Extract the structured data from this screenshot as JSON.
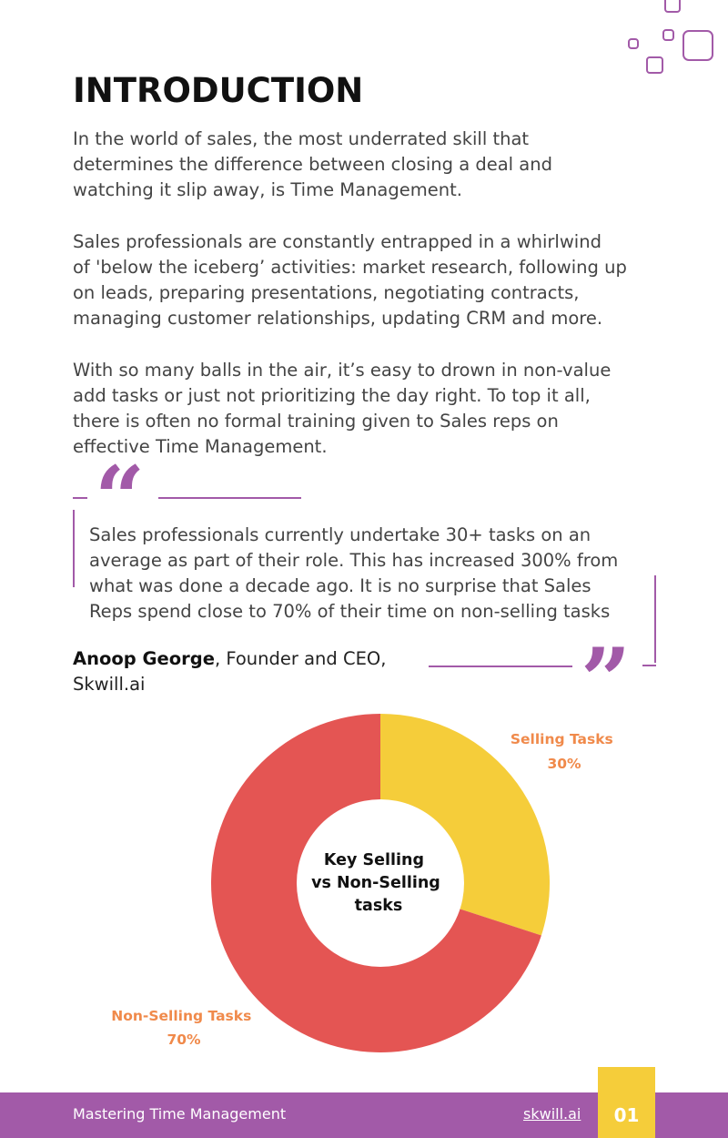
{
  "intro": {
    "title": "INTRODUCTION",
    "p1_lines": [
      "In the world of sales, the most underrated skill that",
      "determines the difference between closing a deal and",
      "watching it slip away, is Time Management."
    ],
    "p2_lines": [
      "Sales professionals are constantly entrapped in a whirlwind",
      "of 'below the iceberg’ activities: market research, following up",
      "on leads, preparing presentations, negotiating contracts,",
      "managing customer relationships, updating CRM and more."
    ],
    "p3_lines": [
      "With so many balls in the air, it’s easy to drown in non-value",
      "add tasks or just not prioritizing the day right. To top it all,",
      "there is often no formal training given to Sales reps on",
      "effective Time Management."
    ]
  },
  "quote": {
    "lines": [
      "Sales professionals currently undertake 30+ tasks on an",
      "average as part of their role. This has increased 300% from",
      "what was done a decade ago.  It is no surprise that Sales",
      "Reps spend close to 70% of their time on non-selling tasks"
    ],
    "author": "Anoop George",
    "role_line1": ", Founder and CEO,",
    "role_line2": "Skwill.ai",
    "open_mark": "“",
    "close_mark": "”"
  },
  "chart_data": {
    "type": "pie",
    "center_label_lines": [
      "Key Selling",
      "vs Non-Selling",
      "tasks"
    ],
    "slices": [
      {
        "name": "Selling Tasks",
        "value": 30,
        "label": "30%",
        "color": "#f5cd3a"
      },
      {
        "name": "Non-Selling Tasks",
        "value": 70,
        "label": "70%",
        "color": "#e45553"
      }
    ]
  },
  "footer": {
    "title": "Mastering Time Management",
    "link": "skwill.ai",
    "page_number": "01"
  },
  "colors": {
    "accent": "#a25aa8",
    "tab": "#f5cd3a",
    "label": "#f08a4b"
  }
}
